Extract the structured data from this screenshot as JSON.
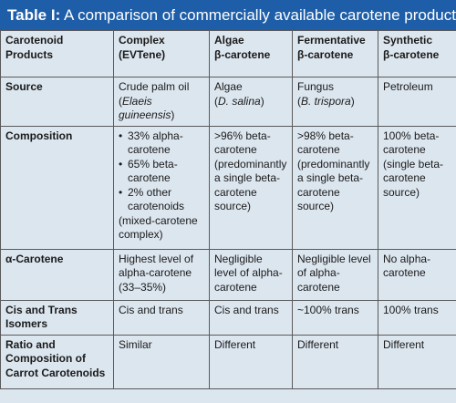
{
  "title": {
    "label": "Table I:",
    "text": "A comparison of commercially available carotene products"
  },
  "header": {
    "c0": "Carotenoid Products",
    "c1a": "Complex",
    "c1b": "(EVTene)",
    "c2a": "Algae",
    "c2b": "β-carotene",
    "c3a": "Fermentative",
    "c3b": "β-carotene",
    "c4a": "Synthetic",
    "c4b": "β-carotene"
  },
  "rows": {
    "source": {
      "label": "Source",
      "complex_a": "Crude palm oil",
      "complex_b": "(",
      "complex_sp": "Elaeis guineensis",
      "complex_c": ")",
      "algae_a": "Algae",
      "algae_b": "(",
      "algae_sp": "D. salina",
      "algae_c": ")",
      "ferm_a": "Fungus",
      "ferm_b": "(",
      "ferm_sp": "B. trispora",
      "ferm_c": ")",
      "synth": "Petroleum"
    },
    "composition": {
      "label": "Composition",
      "complex_items": [
        "33% alpha-carotene",
        "65% beta-carotene",
        "2% other carotenoids"
      ],
      "complex_note": "(mixed-carotene complex)",
      "algae": ">96% beta-carotene (predominantly a single beta-carotene source)",
      "ferm": ">98% beta-carotene (predominantly a single beta-carotene source)",
      "synth": "100% beta-carotene (single beta-carotene source)"
    },
    "alpha": {
      "label": "α-Carotene",
      "complex": "Highest level of alpha-carotene (33–35%)",
      "algae": "Negligible level of alpha-carotene",
      "ferm": "Negligible level of alpha-carotene",
      "synth": "No alpha-carotene"
    },
    "cis": {
      "label": "Cis and Trans Isomers",
      "complex": "Cis and trans",
      "algae": "Cis and trans",
      "ferm": "~100% trans",
      "synth": "100% trans"
    },
    "ratio": {
      "label": "Ratio and Composition of Carrot Carotenoids",
      "complex": "Similar",
      "algae": "Different",
      "ferm": "Different",
      "synth": "Different"
    }
  }
}
